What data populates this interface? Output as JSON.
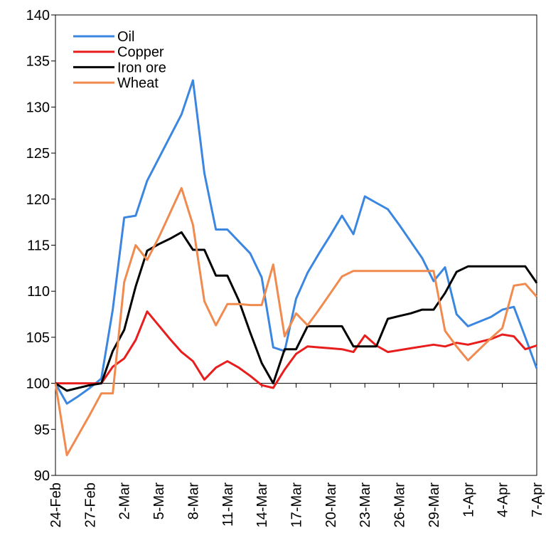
{
  "chart_data": {
    "type": "line",
    "categories": [
      "24-Feb",
      null,
      null,
      "27-Feb",
      null,
      null,
      "2-Mar",
      null,
      null,
      "5-Mar",
      null,
      null,
      "8-Mar",
      null,
      null,
      "11-Mar",
      null,
      null,
      "14-Mar",
      null,
      null,
      "17-Mar",
      null,
      null,
      "20-Mar",
      null,
      null,
      "23-Mar",
      null,
      null,
      "26-Mar",
      null,
      null,
      "29-Mar",
      null,
      null,
      "1-Apr",
      null,
      null,
      "4-Apr",
      null,
      null,
      "7-Apr"
    ],
    "series": [
      {
        "name": "Oil",
        "color": "#3b86e0",
        "values": [
          100,
          97.8,
          98.6,
          99.5,
          100.5,
          108,
          118,
          118.2,
          122,
          124.4,
          126.8,
          129.2,
          132.9,
          122.8,
          116.7,
          116.7,
          115.4,
          114.1,
          111.5,
          103.9,
          103.5,
          109.2,
          112,
          114.1,
          116.1,
          118.2,
          116.2,
          120.3,
          119.6,
          118.9,
          117.2,
          115.4,
          113.6,
          111.1,
          112.6,
          107.5,
          106.2,
          106.7,
          107.2,
          108,
          108.3,
          105,
          101.6
        ]
      },
      {
        "name": "Copper",
        "color": "#e81d1d",
        "values": [
          100,
          100,
          100,
          100,
          100,
          101.8,
          102.7,
          104.7,
          107.8,
          106.3,
          104.8,
          103.4,
          102.4,
          100.4,
          101.7,
          102.4,
          101.7,
          100.8,
          99.8,
          99.5,
          101.5,
          103.2,
          104,
          103.9,
          103.8,
          103.7,
          103.4,
          105.2,
          104.1,
          103.4,
          103.6,
          103.8,
          104,
          104.2,
          104,
          104.4,
          104.2,
          104.5,
          104.8,
          105.3,
          105.1,
          103.7,
          104.1
        ]
      },
      {
        "name": "Iron ore",
        "color": "#000000",
        "values": [
          100,
          99.2,
          99.5,
          99.8,
          100,
          103.5,
          105.8,
          110.5,
          114.4,
          115.1,
          115.7,
          116.4,
          114.5,
          114.5,
          111.7,
          111.7,
          109,
          105.5,
          102.2,
          100,
          103.7,
          103.7,
          106.2,
          106.2,
          106.2,
          106.2,
          104,
          104,
          104,
          107,
          107.3,
          107.6,
          108,
          108,
          109.8,
          112.1,
          112.7,
          112.7,
          112.7,
          112.7,
          112.7,
          112.7,
          110.9
        ]
      },
      {
        "name": "Wheat",
        "color": "#f08a4e",
        "values": [
          100,
          92.2,
          94.4,
          96.6,
          98.9,
          98.9,
          111,
          115,
          113.4,
          115.8,
          118.5,
          121.2,
          117.2,
          108.9,
          106.3,
          108.6,
          108.6,
          108.5,
          108.5,
          112.9,
          105.1,
          107.6,
          106.3,
          108,
          109.8,
          111.6,
          112.2,
          112.2,
          112.2,
          112.2,
          112.2,
          112.2,
          112.2,
          112.2,
          105.7,
          104,
          102.5,
          103.7,
          104.9,
          106,
          110.6,
          110.8,
          109.4
        ]
      }
    ],
    "ylim": [
      90,
      140
    ],
    "yticks": [
      90,
      95,
      100,
      105,
      110,
      115,
      120,
      125,
      130,
      135,
      140
    ],
    "x_axis_at": 100,
    "grid": false,
    "legend": "top-left"
  }
}
